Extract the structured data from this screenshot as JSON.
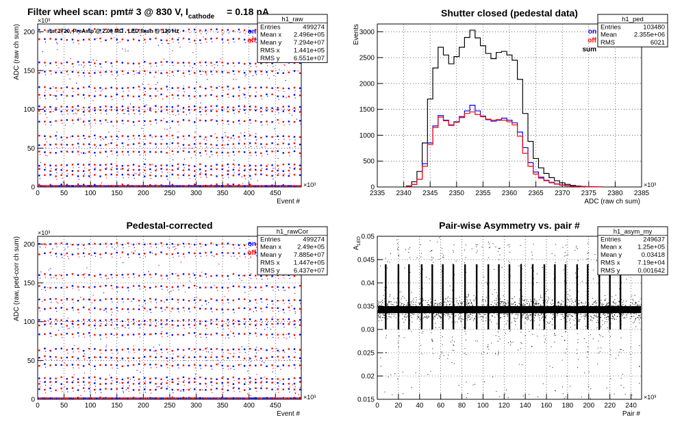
{
  "page": {
    "main_title": "Filter wheel scan: pmt#   3 @   830 V, I",
    "main_title_sub": "cathode",
    "main_title_tail": "= 0.18 nA"
  },
  "colors": {
    "on": "#0000ff",
    "off": "#ff0000",
    "sum": "#000000",
    "grid": "#000000"
  },
  "chart_data": [
    {
      "id": "raw",
      "type": "scatter",
      "title": "",
      "annotation": "run 2720, PreAmp @ 2.00 MΩ . LED flash @  120 Hz",
      "xlabel": "Event #",
      "ylabel": "ADC (raw ch sum)",
      "x_exponent": "×10³",
      "y_exponent": "×10³",
      "xlim": [
        0,
        499
      ],
      "ylim": [
        0,
        210
      ],
      "xticks": [
        0,
        50,
        100,
        150,
        200,
        250,
        300,
        350,
        400,
        450
      ],
      "yticks": [
        0,
        50,
        100,
        150,
        200
      ],
      "grid": true,
      "legend": [
        "on",
        "off"
      ],
      "levels": [
        202,
        190,
        160,
        148,
        128,
        118,
        103,
        98,
        85,
        65,
        55,
        45,
        28,
        22,
        15,
        2
      ],
      "stats": {
        "name": "h1_raw",
        "rows": [
          [
            "Entries",
            "499274"
          ],
          [
            "Mean x",
            "2.496e+05"
          ],
          [
            "Mean y",
            "7.294e+07"
          ],
          [
            "RMS x",
            "1.441e+05"
          ],
          [
            "RMS y",
            "6.551e+07"
          ]
        ]
      }
    },
    {
      "id": "ped",
      "type": "line",
      "title": "Shutter closed (pedestal data)",
      "xlabel": "ADC (raw ch sum)",
      "ylabel": "Events",
      "x_exponent": "×10³",
      "xlim": [
        2335,
        2385
      ],
      "ylim": [
        0,
        3150
      ],
      "xticks": [
        2335,
        2340,
        2345,
        2350,
        2355,
        2360,
        2365,
        2370,
        2375,
        2380,
        2385
      ],
      "yticks": [
        0,
        500,
        1000,
        1500,
        2000,
        2500,
        3000
      ],
      "grid": true,
      "legend": [
        "on",
        "off",
        "sum"
      ],
      "x": [
        2341,
        2342,
        2343,
        2344,
        2345,
        2346,
        2347,
        2348,
        2349,
        2350,
        2351,
        2352,
        2353,
        2354,
        2355,
        2356,
        2357,
        2358,
        2359,
        2360,
        2361,
        2362,
        2363,
        2364,
        2365,
        2366,
        2367,
        2368,
        2369,
        2370,
        2371,
        2372,
        2373,
        2374,
        2375,
        2376,
        2377
      ],
      "series": [
        {
          "name": "on",
          "values": [
            10,
            50,
            150,
            450,
            850,
            1180,
            1380,
            1290,
            1200,
            1260,
            1360,
            1470,
            1580,
            1470,
            1370,
            1300,
            1270,
            1290,
            1330,
            1290,
            1240,
            1060,
            760,
            470,
            290,
            190,
            130,
            90,
            60,
            40,
            25,
            15,
            10,
            5,
            3,
            2,
            1
          ]
        },
        {
          "name": "off",
          "values": [
            10,
            50,
            150,
            400,
            820,
            1150,
            1350,
            1280,
            1190,
            1250,
            1340,
            1420,
            1450,
            1400,
            1360,
            1310,
            1290,
            1300,
            1290,
            1260,
            1200,
            980,
            650,
            400,
            250,
            170,
            120,
            80,
            55,
            35,
            22,
            12,
            8,
            4,
            2,
            1,
            1
          ]
        },
        {
          "name": "sum",
          "values": [
            20,
            100,
            300,
            850,
            1700,
            2300,
            2700,
            2550,
            2380,
            2520,
            2700,
            2890,
            3030,
            2880,
            2730,
            2580,
            2480,
            2600,
            2620,
            2550,
            2450,
            2080,
            1420,
            880,
            550,
            370,
            260,
            180,
            120,
            80,
            50,
            30,
            18,
            10,
            5,
            3,
            2
          ]
        }
      ],
      "stats": {
        "name": "h1_ped",
        "rows": [
          [
            "Entries",
            "103480"
          ],
          [
            "Mean",
            "2.355e+06"
          ],
          [
            "RMS",
            "6021"
          ]
        ]
      }
    },
    {
      "id": "raw_cor",
      "type": "scatter",
      "title": "Pedestal-corrected",
      "xlabel": "Event #",
      "ylabel": "ADC (raw, ped-corr ch sum)",
      "x_exponent": "×10³",
      "y_exponent": "×10³",
      "xlim": [
        0,
        499
      ],
      "ylim": [
        0,
        210
      ],
      "xticks": [
        0,
        50,
        100,
        150,
        200,
        250,
        300,
        350,
        400,
        450
      ],
      "yticks": [
        0,
        50,
        100,
        150,
        200
      ],
      "grid": true,
      "legend": [
        "on",
        "off"
      ],
      "levels": [
        200,
        188,
        160,
        145,
        128,
        117,
        102,
        96,
        84,
        64,
        54,
        44,
        27,
        21,
        13,
        1
      ],
      "stats": {
        "name": "h1_rawCor",
        "rows": [
          [
            "Entries",
            "499274"
          ],
          [
            "Mean x",
            "2.49e+05"
          ],
          [
            "Mean y",
            "7.885e+07"
          ],
          [
            "RMS x",
            "1.447e+05"
          ],
          [
            "RMS y",
            "6.437e+07"
          ]
        ]
      }
    },
    {
      "id": "asym",
      "type": "scatter",
      "title": "Pair-wise Asymmetry vs. pair #",
      "xlabel": "Pair #",
      "ylabel": "A",
      "ylabel_sub": "LED",
      "x_exponent": "×10³",
      "xlim": [
        0,
        250
      ],
      "ylim": [
        0.015,
        0.05
      ],
      "xticks": [
        0,
        20,
        40,
        60,
        80,
        100,
        120,
        140,
        160,
        180,
        200,
        220,
        240
      ],
      "yticks": [
        0.015,
        0.02,
        0.025,
        0.03,
        0.035,
        0.04,
        0.045,
        0.05
      ],
      "grid": true,
      "band": [
        0.0335,
        0.035
      ],
      "spike_x": [
        8,
        20,
        30,
        42,
        52,
        62,
        72,
        83,
        94,
        105,
        115,
        125,
        136,
        147,
        158,
        168,
        178,
        189,
        199,
        210,
        220,
        230
      ],
      "stats": {
        "name": "h1_asym_my",
        "rows": [
          [
            "Entries",
            "249637"
          ],
          [
            "Mean x",
            "1.25e+05"
          ],
          [
            "Mean y",
            "0.03418"
          ],
          [
            "RMS x",
            "7.19e+04"
          ],
          [
            "RMS y",
            "0.001642"
          ]
        ]
      }
    }
  ]
}
